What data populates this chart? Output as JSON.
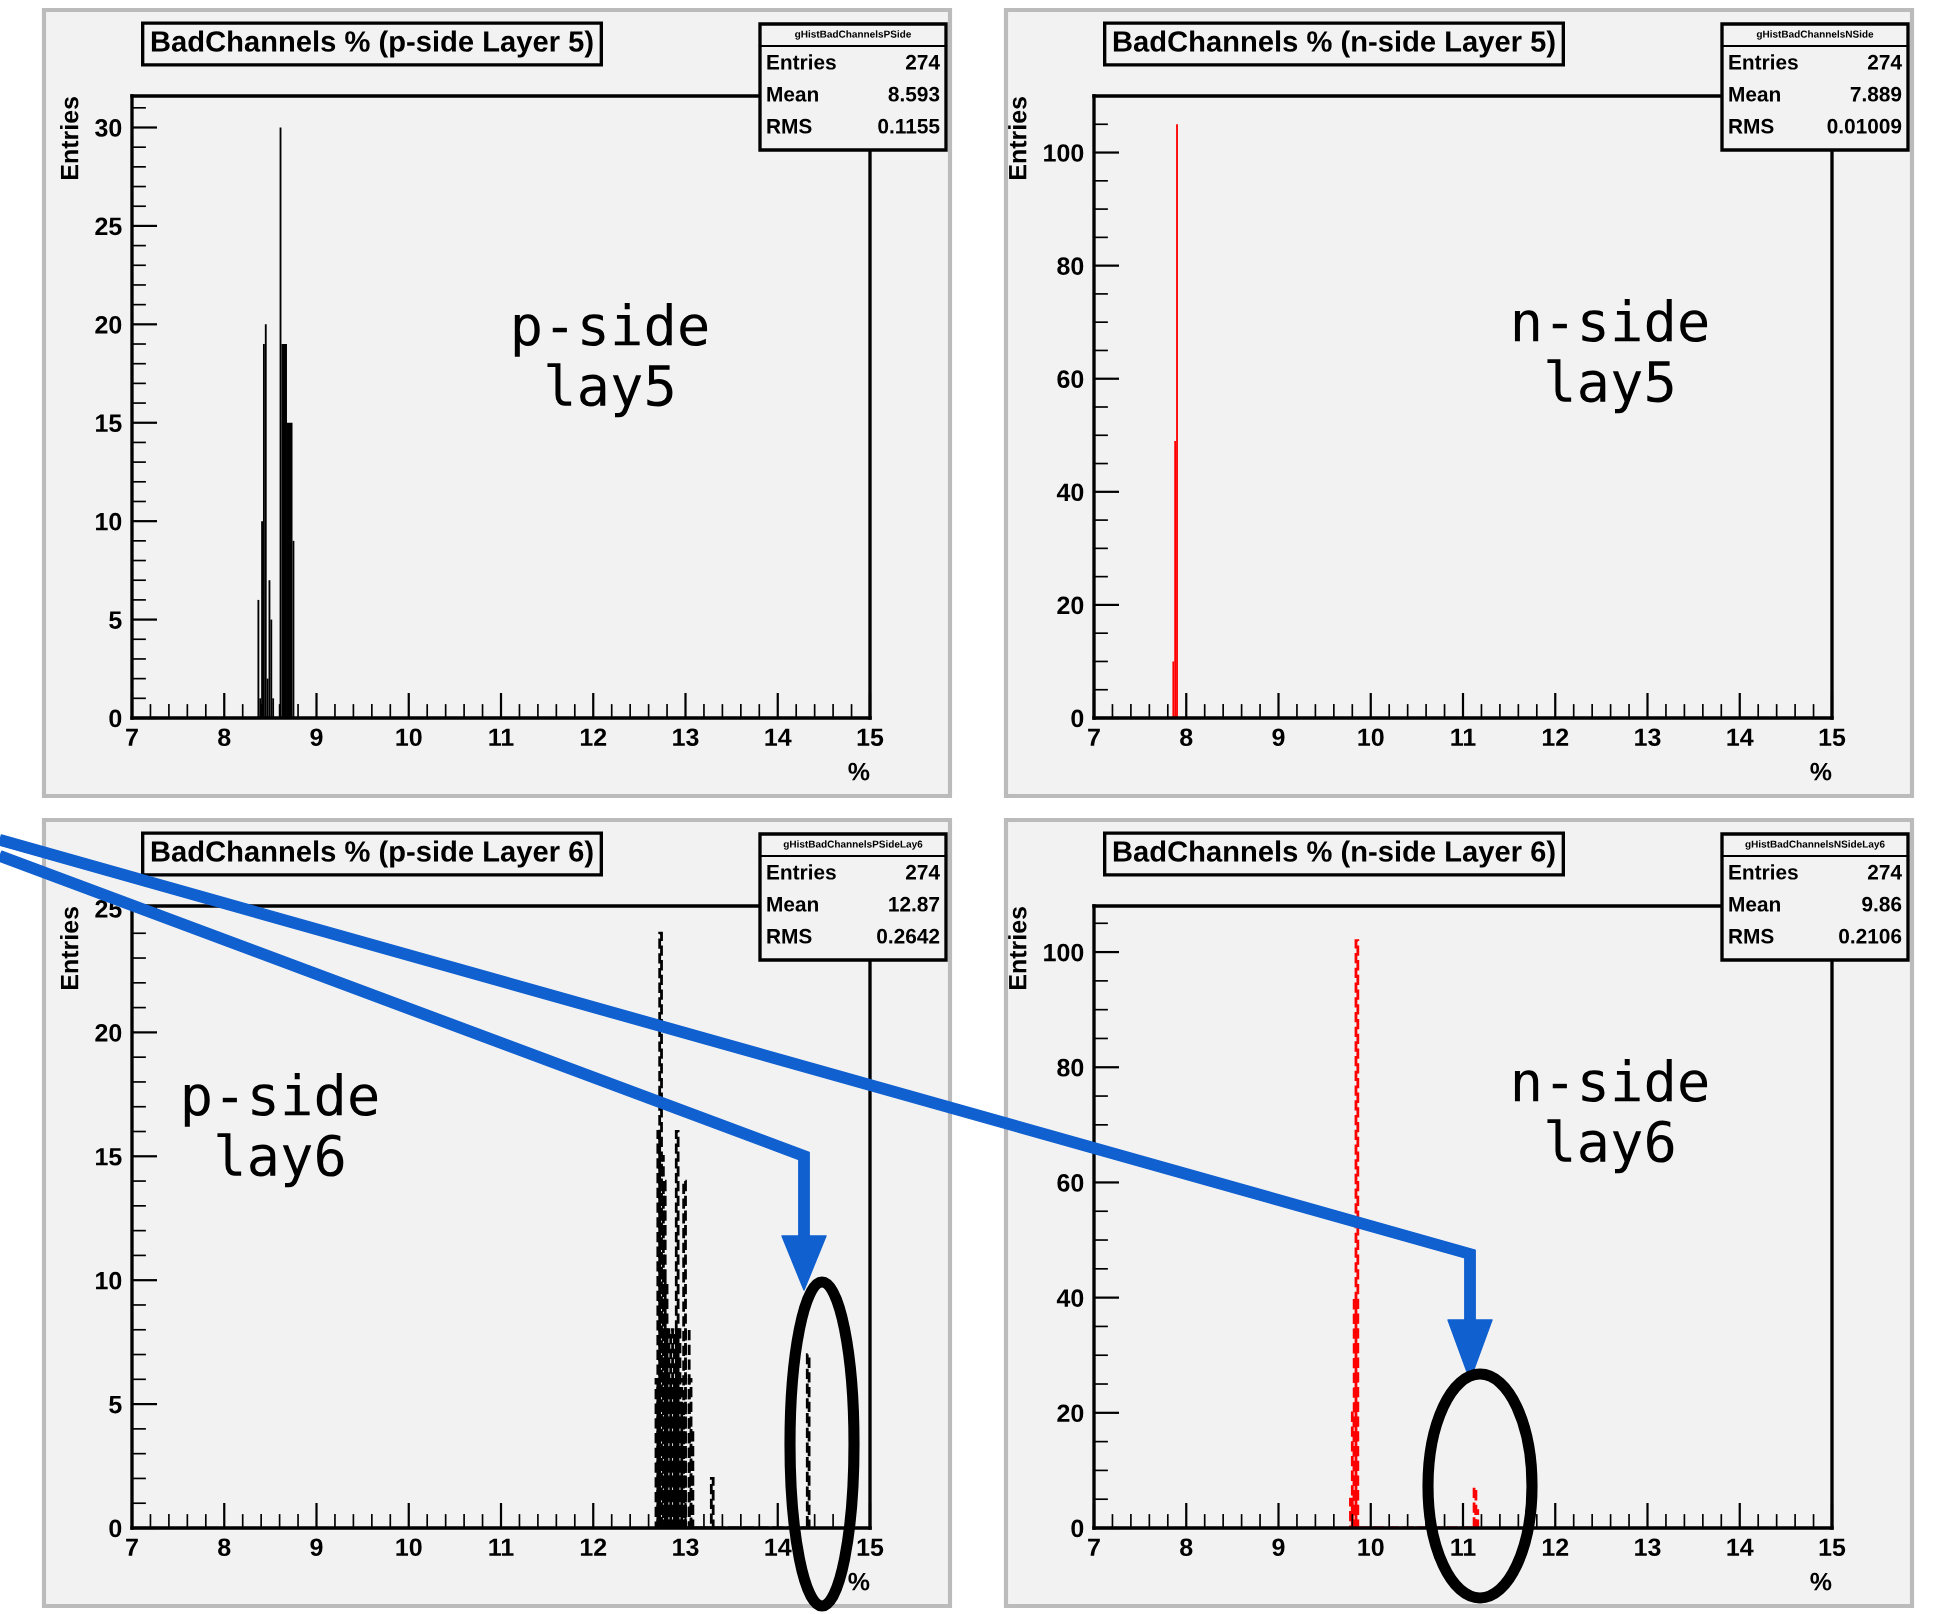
{
  "chart_data": [
    {
      "type": "histogram",
      "title": "BadChannels % (p-side Layer 5)",
      "xlabel": "%",
      "ylabel": "Entries",
      "color": "#000000",
      "line_style": "solid",
      "bins": [
        8.36,
        8.38,
        8.4,
        8.42,
        8.44,
        8.46,
        8.48,
        8.5,
        8.52,
        8.54,
        8.6,
        8.62,
        8.68,
        8.74,
        8.76
      ],
      "values": [
        6,
        1,
        10,
        19,
        20,
        2,
        7,
        5,
        1,
        0,
        30,
        19,
        15,
        9
      ],
      "xlim": [
        7,
        15
      ],
      "ylim": [
        0,
        31.6
      ],
      "xticks": [
        7,
        {
          "value": 7.2,
          "label": null
        },
        {
          "value": 7.4,
          "label": null
        },
        {
          "value": 7.6,
          "label": null
        },
        {
          "value": 7.8,
          "label": null
        },
        8,
        {
          "value": 8.2,
          "label": null
        },
        {
          "value": 8.4,
          "label": null
        },
        {
          "value": 8.6,
          "label": null
        },
        {
          "value": 8.8,
          "label": null
        },
        9,
        {
          "value": 9.2,
          "label": null
        },
        {
          "value": 9.4,
          "label": null
        },
        {
          "value": 9.6,
          "label": null
        },
        {
          "value": 9.8,
          "label": null
        },
        10,
        {
          "value": 10.2,
          "label": null
        },
        {
          "value": 10.4,
          "label": null
        },
        {
          "value": 10.6,
          "label": null
        },
        {
          "value": 10.8,
          "label": null
        },
        11,
        {
          "value": 11.2,
          "label": null
        },
        {
          "value": 11.4,
          "label": null
        },
        {
          "value": 11.6,
          "label": null
        },
        {
          "value": 11.8,
          "label": null
        },
        12,
        {
          "value": 12.2,
          "label": null
        },
        {
          "value": 12.4,
          "label": null
        },
        {
          "value": 12.6,
          "label": null
        },
        {
          "value": 12.8,
          "label": null
        },
        13,
        {
          "value": 13.2,
          "label": null
        },
        {
          "value": 13.4,
          "label": null
        },
        {
          "value": 13.6,
          "label": null
        },
        {
          "value": 13.8,
          "label": null
        },
        14,
        {
          "value": 14.2,
          "label": null
        },
        {
          "value": 14.4,
          "label": null
        },
        {
          "value": 14.6,
          "label": null
        },
        {
          "value": 14.8,
          "label": null
        },
        15
      ],
      "yticks": [
        0,
        {
          "value": 1,
          "label": null
        },
        {
          "value": 2,
          "label": null
        },
        {
          "value": 3,
          "label": null
        },
        {
          "value": 4,
          "label": null
        },
        5,
        {
          "value": 6,
          "label": null
        },
        {
          "value": 7,
          "label": null
        },
        {
          "value": 8,
          "label": null
        },
        {
          "value": 9,
          "label": null
        },
        10,
        {
          "value": 11,
          "label": null
        },
        {
          "value": 12,
          "label": null
        },
        {
          "value": 13,
          "label": null
        },
        {
          "value": 14,
          "label": null
        },
        15,
        {
          "value": 16,
          "label": null
        },
        {
          "value": 17,
          "label": null
        },
        {
          "value": 18,
          "label": null
        },
        {
          "value": 19,
          "label": null
        },
        20,
        {
          "value": 21,
          "label": null
        },
        {
          "value": 22,
          "label": null
        },
        {
          "value": 23,
          "label": null
        },
        {
          "value": 24,
          "label": null
        },
        25,
        {
          "value": 26,
          "label": null
        },
        {
          "value": 27,
          "label": null
        },
        {
          "value": 28,
          "label": null
        },
        {
          "value": 29,
          "label": null
        },
        30,
        {
          "value": 31,
          "label": null
        }
      ],
      "annotations": [
        "gHistBadChannelsPSide",
        "Entries",
        "274",
        "Mean",
        "8.593",
        "RMS",
        "0.1155",
        "p-side\nlay5"
      ]
    },
    {
      "type": "histogram",
      "title": "BadChannels % (n-side Layer 5)",
      "xlabel": "%",
      "ylabel": "Entries",
      "color": "#ff0000",
      "line_style": "solid",
      "bins": [
        7.85,
        7.87,
        7.89,
        7.91
      ],
      "values": [
        10,
        49,
        105
      ],
      "xlim": [
        7,
        15
      ],
      "ylim": [
        0,
        110
      ],
      "xticks": [
        7,
        {
          "value": 7.2,
          "label": null
        },
        {
          "value": 7.4,
          "label": null
        },
        {
          "value": 7.6,
          "label": null
        },
        {
          "value": 7.8,
          "label": null
        },
        8,
        {
          "value": 8.2,
          "label": null
        },
        {
          "value": 8.4,
          "label": null
        },
        {
          "value": 8.6,
          "label": null
        },
        {
          "value": 8.8,
          "label": null
        },
        9,
        {
          "value": 9.2,
          "label": null
        },
        {
          "value": 9.4,
          "label": null
        },
        {
          "value": 9.6,
          "label": null
        },
        {
          "value": 9.8,
          "label": null
        },
        10,
        {
          "value": 10.2,
          "label": null
        },
        {
          "value": 10.4,
          "label": null
        },
        {
          "value": 10.6,
          "label": null
        },
        {
          "value": 10.8,
          "label": null
        },
        11,
        {
          "value": 11.2,
          "label": null
        },
        {
          "value": 11.4,
          "label": null
        },
        {
          "value": 11.6,
          "label": null
        },
        {
          "value": 11.8,
          "label": null
        },
        12,
        {
          "value": 12.2,
          "label": null
        },
        {
          "value": 12.4,
          "label": null
        },
        {
          "value": 12.6,
          "label": null
        },
        {
          "value": 12.8,
          "label": null
        },
        13,
        {
          "value": 13.2,
          "label": null
        },
        {
          "value": 13.4,
          "label": null
        },
        {
          "value": 13.6,
          "label": null
        },
        {
          "value": 13.8,
          "label": null
        },
        14,
        {
          "value": 14.2,
          "label": null
        },
        {
          "value": 14.4,
          "label": null
        },
        {
          "value": 14.6,
          "label": null
        },
        {
          "value": 14.8,
          "label": null
        },
        15
      ],
      "yticks": [
        0,
        {
          "value": 5,
          "label": null
        },
        {
          "value": 10,
          "label": null
        },
        {
          "value": 15,
          "label": null
        },
        20,
        {
          "value": 25,
          "label": null
        },
        {
          "value": 30,
          "label": null
        },
        {
          "value": 35,
          "label": null
        },
        40,
        {
          "value": 45,
          "label": null
        },
        {
          "value": 50,
          "label": null
        },
        {
          "value": 55,
          "label": null
        },
        60,
        {
          "value": 65,
          "label": null
        },
        {
          "value": 70,
          "label": null
        },
        {
          "value": 75,
          "label": null
        },
        80,
        {
          "value": 85,
          "label": null
        },
        {
          "value": 90,
          "label": null
        },
        {
          "value": 95,
          "label": null
        },
        100,
        {
          "value": 105,
          "label": null
        },
        {
          "value": 110,
          "label": null
        }
      ],
      "annotations": [
        "gHistBadChannelsNSide",
        "Entries",
        "274",
        "Mean",
        "7.889",
        "RMS",
        "0.01009",
        "n-side\nlay5"
      ]
    },
    {
      "type": "histogram",
      "title": "BadChannels % (p-side Layer 6)",
      "xlabel": "%",
      "ylabel": "Entries",
      "color": "#000000",
      "line_style": "dashed",
      "bins": [
        12.68,
        12.7,
        12.72,
        12.74,
        12.76,
        12.78,
        12.8,
        12.82,
        12.84,
        12.86,
        12.88,
        12.9,
        12.92,
        12.94,
        12.96,
        12.98,
        13.0,
        13.04,
        13.06,
        13.08,
        13.28,
        13.3,
        14.32,
        14.34
      ],
      "values": [
        6,
        16,
        24,
        15,
        14,
        10,
        8,
        6,
        8,
        6,
        8,
        16,
        8,
        6,
        5,
        14,
        8,
        6,
        4,
        0,
        2,
        0,
        7
      ],
      "xlim": [
        7,
        15
      ],
      "ylim": [
        0,
        25.1
      ],
      "xticks": [
        7,
        {
          "value": 7.2,
          "label": null
        },
        {
          "value": 7.4,
          "label": null
        },
        {
          "value": 7.6,
          "label": null
        },
        {
          "value": 7.8,
          "label": null
        },
        8,
        {
          "value": 8.2,
          "label": null
        },
        {
          "value": 8.4,
          "label": null
        },
        {
          "value": 8.6,
          "label": null
        },
        {
          "value": 8.8,
          "label": null
        },
        9,
        {
          "value": 9.2,
          "label": null
        },
        {
          "value": 9.4,
          "label": null
        },
        {
          "value": 9.6,
          "label": null
        },
        {
          "value": 9.8,
          "label": null
        },
        10,
        {
          "value": 10.2,
          "label": null
        },
        {
          "value": 10.4,
          "label": null
        },
        {
          "value": 10.6,
          "label": null
        },
        {
          "value": 10.8,
          "label": null
        },
        11,
        {
          "value": 11.2,
          "label": null
        },
        {
          "value": 11.4,
          "label": null
        },
        {
          "value": 11.6,
          "label": null
        },
        {
          "value": 11.8,
          "label": null
        },
        12,
        {
          "value": 12.2,
          "label": null
        },
        {
          "value": 12.4,
          "label": null
        },
        {
          "value": 12.6,
          "label": null
        },
        {
          "value": 12.8,
          "label": null
        },
        13,
        {
          "value": 13.2,
          "label": null
        },
        {
          "value": 13.4,
          "label": null
        },
        {
          "value": 13.6,
          "label": null
        },
        {
          "value": 13.8,
          "label": null
        },
        14,
        {
          "value": 14.2,
          "label": null
        },
        {
          "value": 14.4,
          "label": null
        },
        {
          "value": 14.6,
          "label": null
        },
        {
          "value": 14.8,
          "label": null
        },
        15
      ],
      "yticks": [
        0,
        {
          "value": 1,
          "label": null
        },
        {
          "value": 2,
          "label": null
        },
        {
          "value": 3,
          "label": null
        },
        {
          "value": 4,
          "label": null
        },
        5,
        {
          "value": 6,
          "label": null
        },
        {
          "value": 7,
          "label": null
        },
        {
          "value": 8,
          "label": null
        },
        {
          "value": 9,
          "label": null
        },
        10,
        {
          "value": 11,
          "label": null
        },
        {
          "value": 12,
          "label": null
        },
        {
          "value": 13,
          "label": null
        },
        {
          "value": 14,
          "label": null
        },
        15,
        {
          "value": 16,
          "label": null
        },
        {
          "value": 17,
          "label": null
        },
        {
          "value": 18,
          "label": null
        },
        {
          "value": 19,
          "label": null
        },
        20,
        {
          "value": 21,
          "label": null
        },
        {
          "value": 22,
          "label": null
        },
        {
          "value": 23,
          "label": null
        },
        {
          "value": 24,
          "label": null
        },
        25
      ],
      "annotations": [
        "gHistBadChannelsPSideLay6",
        "Entries",
        "274",
        "Mean",
        "12.87",
        "RMS",
        "0.2642",
        "p-side\nlay6"
      ]
    },
    {
      "type": "histogram",
      "title": "BadChannels % (n-side Layer 6)",
      "xlabel": "%",
      "ylabel": "Entries",
      "color": "#ff0000",
      "line_style": "dashed",
      "bins": [
        9.78,
        9.8,
        9.82,
        9.84,
        9.86,
        11.12,
        11.14,
        11.16
      ],
      "values": [
        5,
        20,
        40,
        102,
        0,
        7,
        3
      ],
      "xlim": [
        7,
        15
      ],
      "ylim": [
        0,
        108
      ],
      "xticks": [
        7,
        {
          "value": 7.2,
          "label": null
        },
        {
          "value": 7.4,
          "label": null
        },
        {
          "value": 7.6,
          "label": null
        },
        {
          "value": 7.8,
          "label": null
        },
        8,
        {
          "value": 8.2,
          "label": null
        },
        {
          "value": 8.4,
          "label": null
        },
        {
          "value": 8.6,
          "label": null
        },
        {
          "value": 8.8,
          "label": null
        },
        9,
        {
          "value": 9.2,
          "label": null
        },
        {
          "value": 9.4,
          "label": null
        },
        {
          "value": 9.6,
          "label": null
        },
        {
          "value": 9.8,
          "label": null
        },
        10,
        {
          "value": 10.2,
          "label": null
        },
        {
          "value": 10.4,
          "label": null
        },
        {
          "value": 10.6,
          "label": null
        },
        {
          "value": 10.8,
          "label": null
        },
        11,
        {
          "value": 11.2,
          "label": null
        },
        {
          "value": 11.4,
          "label": null
        },
        {
          "value": 11.6,
          "label": null
        },
        {
          "value": 11.8,
          "label": null
        },
        12,
        {
          "value": 12.2,
          "label": null
        },
        {
          "value": 12.4,
          "label": null
        },
        {
          "value": 12.6,
          "label": null
        },
        {
          "value": 12.8,
          "label": null
        },
        13,
        {
          "value": 13.2,
          "label": null
        },
        {
          "value": 13.4,
          "label": null
        },
        {
          "value": 13.6,
          "label": null
        },
        {
          "value": 13.8,
          "label": null
        },
        14,
        {
          "value": 14.2,
          "label": null
        },
        {
          "value": 14.4,
          "label": null
        },
        {
          "value": 14.6,
          "label": null
        },
        {
          "value": 14.8,
          "label": null
        },
        15
      ],
      "yticks": [
        0,
        {
          "value": 5,
          "label": null
        },
        {
          "value": 10,
          "label": null
        },
        {
          "value": 15,
          "label": null
        },
        20,
        {
          "value": 25,
          "label": null
        },
        {
          "value": 30,
          "label": null
        },
        {
          "value": 35,
          "label": null
        },
        40,
        {
          "value": 45,
          "label": null
        },
        {
          "value": 50,
          "label": null
        },
        {
          "value": 55,
          "label": null
        },
        60,
        {
          "value": 65,
          "label": null
        },
        {
          "value": 70,
          "label": null
        },
        {
          "value": 75,
          "label": null
        },
        80,
        {
          "value": 85,
          "label": null
        },
        {
          "value": 90,
          "label": null
        },
        {
          "value": 95,
          "label": null
        },
        100,
        {
          "value": 105,
          "label": null
        }
      ],
      "annotations": [
        "gHistBadChannelsNSideLay6",
        "Entries",
        "274",
        "Mean",
        "9.86",
        "RMS",
        "0.2106",
        "n-side\nlay6"
      ]
    }
  ]
}
